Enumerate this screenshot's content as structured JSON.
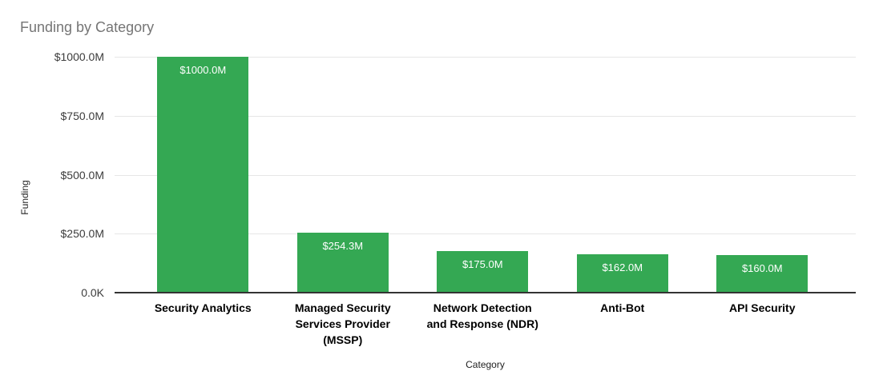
{
  "chart_data": {
    "type": "bar",
    "title": "Funding by Category",
    "xlabel": "Category",
    "ylabel": "Funding",
    "ylim": [
      0,
      1000
    ],
    "grid": true,
    "legend": "none",
    "categories": [
      "Security Analytics",
      "Managed Security Services Provider (MSSP)",
      "Network Detection and Response (NDR)",
      "Anti-Bot",
      "API Security"
    ],
    "categories_lines": [
      [
        "Security Analytics"
      ],
      [
        "Managed Security",
        "Services Provider",
        "(MSSP)"
      ],
      [
        "Network Detection",
        "and Response (NDR)"
      ],
      [
        "Anti-Bot"
      ],
      [
        "API Security"
      ]
    ],
    "values": [
      1000.0,
      254.3,
      175.0,
      162.0,
      160.0
    ],
    "bar_labels": [
      "$1000.0M",
      "$254.3M",
      "$175.0M",
      "$162.0M",
      "$160.0M"
    ],
    "yticks": [
      {
        "value": 0,
        "label": "0.0K"
      },
      {
        "value": 250,
        "label": "$250.0M"
      },
      {
        "value": 500,
        "label": "$500.0M"
      },
      {
        "value": 750,
        "label": "$750.0M"
      },
      {
        "value": 1000,
        "label": "$1000.0M"
      }
    ],
    "colors": {
      "bar": "#34a853",
      "value_label": "#ffffff",
      "gridline": "#e6e6e6",
      "baseline": "#333333",
      "title": "#757575",
      "axis_title": "#222222",
      "tick_label": "#3c3c3c",
      "category_label": "#000000",
      "background": "#ffffff"
    }
  }
}
